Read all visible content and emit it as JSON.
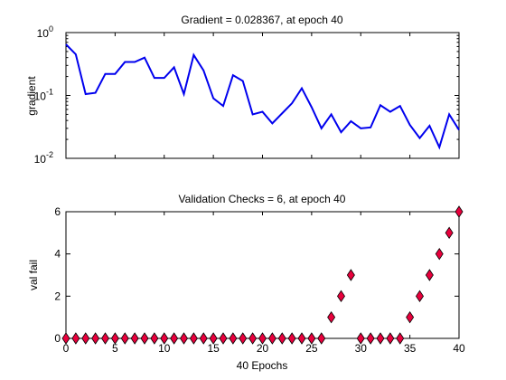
{
  "chart_data": [
    {
      "type": "line",
      "title": "Gradient = 0.028367, at epoch 40",
      "ylabel": "gradient",
      "xlabel": "",
      "yscale": "log",
      "xlim": [
        0,
        40
      ],
      "ylim": [
        0.01,
        1
      ],
      "color": "#0000ee",
      "yticks": [
        {
          "base": "10",
          "exp": "-2"
        },
        {
          "base": "10",
          "exp": "-1"
        },
        {
          "base": "10",
          "exp": "0"
        }
      ],
      "x": [
        0,
        1,
        2,
        3,
        4,
        5,
        6,
        7,
        8,
        9,
        10,
        11,
        12,
        13,
        14,
        15,
        16,
        17,
        18,
        19,
        20,
        21,
        22,
        23,
        24,
        25,
        26,
        27,
        28,
        29,
        30,
        31,
        32,
        33,
        34,
        35,
        36,
        37,
        38,
        39,
        40
      ],
      "y": [
        0.65,
        0.45,
        0.105,
        0.11,
        0.22,
        0.22,
        0.34,
        0.34,
        0.4,
        0.19,
        0.19,
        0.28,
        0.105,
        0.44,
        0.25,
        0.09,
        0.068,
        0.21,
        0.17,
        0.05,
        0.055,
        0.036,
        0.052,
        0.075,
        0.13,
        0.065,
        0.03,
        0.05,
        0.026,
        0.039,
        0.03,
        0.031,
        0.07,
        0.055,
        0.068,
        0.034,
        0.021,
        0.033,
        0.015,
        0.05,
        0.028367
      ]
    },
    {
      "type": "scatter",
      "title": "Validation Checks = 6, at epoch 40",
      "ylabel": "val fail",
      "xlabel": "40 Epochs",
      "xlim": [
        0,
        40
      ],
      "ylim": [
        0,
        6
      ],
      "marker": "diamond",
      "marker_color": "#e8003c",
      "xticks": [
        "0",
        "5",
        "10",
        "15",
        "20",
        "25",
        "30",
        "35",
        "40"
      ],
      "yticks": [
        "0",
        "2",
        "4",
        "6"
      ],
      "x": [
        0,
        1,
        2,
        3,
        4,
        5,
        6,
        7,
        8,
        9,
        10,
        11,
        12,
        13,
        14,
        15,
        16,
        17,
        18,
        19,
        20,
        21,
        22,
        23,
        24,
        25,
        26,
        27,
        28,
        29,
        30,
        31,
        32,
        33,
        34,
        35,
        36,
        37,
        38,
        39,
        40
      ],
      "y": [
        0,
        0,
        0,
        0,
        0,
        0,
        0,
        0,
        0,
        0,
        0,
        0,
        0,
        0,
        0,
        0,
        0,
        0,
        0,
        0,
        0,
        0,
        0,
        0,
        0,
        0,
        0,
        1,
        2,
        3,
        0,
        0,
        0,
        0,
        0,
        1,
        2,
        3,
        4,
        5,
        6
      ]
    }
  ]
}
